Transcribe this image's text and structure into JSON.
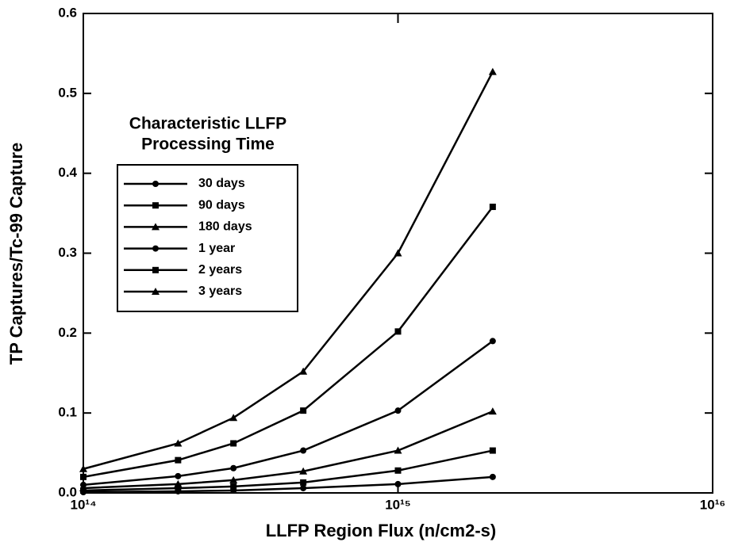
{
  "chart_data": {
    "type": "line",
    "xlabel": "LLFP Region Flux (n/cm2-s)",
    "ylabel": "TP Captures/Tc-99 Capture",
    "legend_title": [
      "Characteristic LLFP",
      "Processing Time"
    ],
    "legend": "upper left",
    "xscale": "log",
    "x": [
      100000000000000.0,
      200000000000000.0,
      300000000000000.0,
      500000000000000.0,
      1000000000000000.0,
      2000000000000000.0
    ],
    "xlim": [
      100000000000000.0,
      1e+16
    ],
    "xticks": [
      {
        "value": 100000000000000.0,
        "label": "10¹⁴"
      },
      {
        "value": 1000000000000000.0,
        "label": "10¹⁵"
      },
      {
        "value": 1e+16,
        "label": "10¹⁶"
      }
    ],
    "ylim": [
      0,
      0.6
    ],
    "yticks": [
      {
        "value": 0,
        "label": "0.0"
      },
      0.1,
      0.2,
      0.3,
      0.4,
      0.5,
      0.6
    ],
    "series": [
      {
        "name": "30 days",
        "color": "#000000",
        "marker": "circle",
        "values": [
          0.001,
          0.002,
          0.003,
          0.006,
          0.011,
          0.02
        ]
      },
      {
        "name": "90 days",
        "color": "#000000",
        "marker": "square",
        "values": [
          0.003,
          0.006,
          0.008,
          0.013,
          0.028,
          0.053
        ]
      },
      {
        "name": "180 days",
        "color": "#000000",
        "marker": "triangle",
        "values": [
          0.006,
          0.011,
          0.016,
          0.027,
          0.053,
          0.102
        ]
      },
      {
        "name": "1 year",
        "color": "#000000",
        "marker": "circle",
        "values": [
          0.01,
          0.021,
          0.031,
          0.053,
          0.103,
          0.19
        ]
      },
      {
        "name": "2 years",
        "color": "#000000",
        "marker": "square",
        "values": [
          0.02,
          0.041,
          0.062,
          0.103,
          0.202,
          0.358
        ]
      },
      {
        "name": "3 years",
        "color": "#000000",
        "marker": "triangle",
        "values": [
          0.03,
          0.062,
          0.094,
          0.152,
          0.3,
          0.527
        ]
      }
    ]
  }
}
